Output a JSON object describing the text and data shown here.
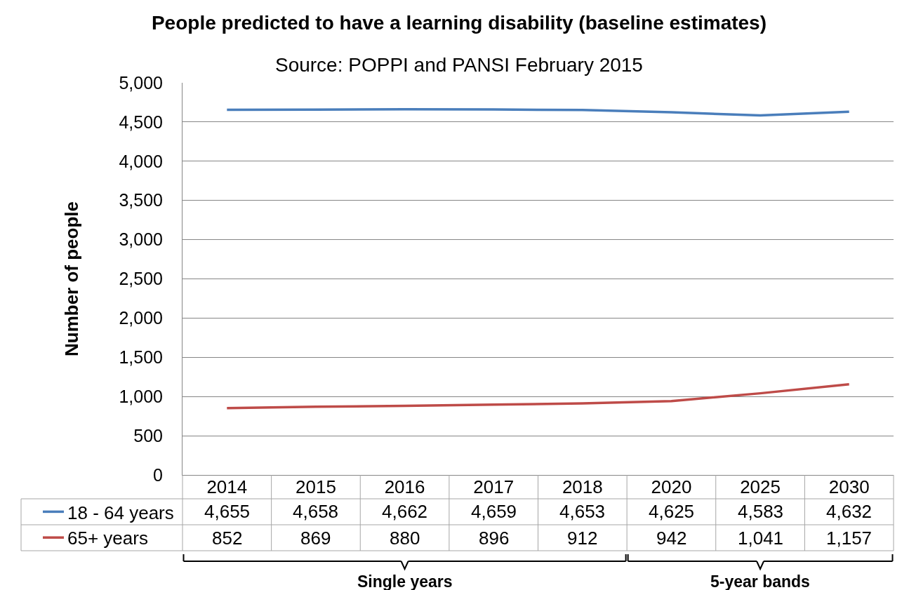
{
  "chart_data": {
    "type": "line",
    "title": "People predicted to have a learning disability (baseline estimates)",
    "subtitle": "Source: POPPI and PANSI February 2015",
    "ylabel": "Number of people",
    "categories": [
      "2014",
      "2015",
      "2016",
      "2017",
      "2018",
      "2020",
      "2025",
      "2030"
    ],
    "series": [
      {
        "name": "18 - 64 years",
        "color": "#4a7ebb",
        "values": [
          4655,
          4658,
          4662,
          4659,
          4653,
          4625,
          4583,
          4632
        ],
        "value_labels": [
          "4,655",
          "4,658",
          "4,662",
          "4,659",
          "4,653",
          "4,625",
          "4,583",
          "4,632"
        ]
      },
      {
        "name": "65+ years",
        "color": "#be4b48",
        "values": [
          852,
          869,
          880,
          896,
          912,
          942,
          1041,
          1157
        ],
        "value_labels": [
          "852",
          "869",
          "880",
          "896",
          "912",
          "942",
          "1,041",
          "1,157"
        ]
      }
    ],
    "ylim": [
      0,
      5000
    ],
    "yticks": [
      0,
      500,
      {
        "value": 1000,
        "label": "1,000"
      },
      {
        "value": 1500,
        "label": "1,500"
      },
      {
        "value": 2000,
        "label": "2,000"
      },
      {
        "value": 2500,
        "label": "2,500"
      },
      {
        "value": 3000,
        "label": "3,000"
      },
      {
        "value": 3500,
        "label": "3,500"
      },
      {
        "value": 4000,
        "label": "4,000"
      },
      {
        "value": 4500,
        "label": "4,500"
      },
      {
        "value": 5000,
        "label": "5,000"
      }
    ],
    "grid": "y",
    "legend": "bottom left",
    "annotations": [
      "Single years",
      "5-year bands"
    ]
  }
}
